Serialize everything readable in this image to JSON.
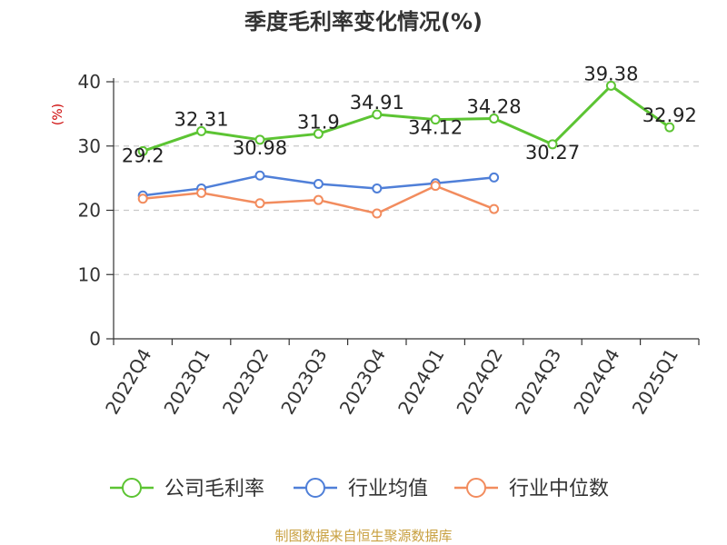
{
  "chart_data": {
    "type": "line",
    "title": "季度毛利率变化情况(%)",
    "ylabel": "(%)",
    "ylim": [
      0,
      40
    ],
    "yticks": [
      0,
      10,
      20,
      30,
      40
    ],
    "grid": true,
    "legend_position": "bottom",
    "categories": [
      "2022Q4",
      "2023Q1",
      "2023Q2",
      "2023Q3",
      "2023Q4",
      "2024Q1",
      "2024Q2",
      "2024Q3",
      "2024Q4",
      "2025Q1"
    ],
    "series": [
      {
        "name": "公司毛利率",
        "color": "#5cc433",
        "values": [
          29.2,
          32.31,
          30.98,
          31.9,
          34.91,
          34.12,
          34.28,
          30.27,
          39.38,
          32.92
        ],
        "labels": [
          "29.2",
          "32.31",
          "30.98",
          "31.9",
          "34.91",
          "34.12",
          "34.28",
          "30.27",
          "39.38",
          "32.92"
        ]
      },
      {
        "name": "行业均值",
        "color": "#4f7fd8",
        "values": [
          22.3,
          23.4,
          25.4,
          24.1,
          23.4,
          24.2,
          25.1,
          null,
          null,
          null
        ]
      },
      {
        "name": "行业中位数",
        "color": "#f28c5e",
        "values": [
          21.8,
          22.7,
          21.1,
          21.6,
          19.5,
          23.8,
          20.2,
          null,
          null,
          null
        ]
      }
    ]
  },
  "source": "制图数据来自恒生聚源数据库"
}
